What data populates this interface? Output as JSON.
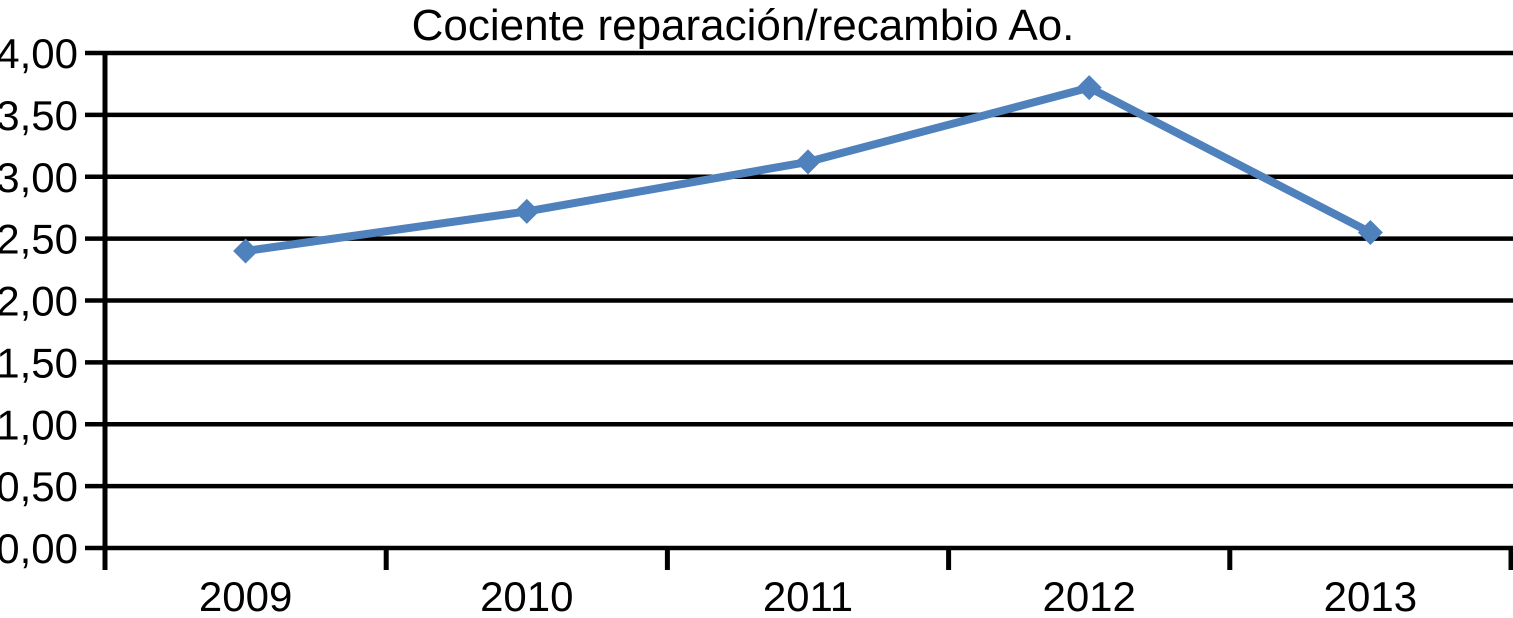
{
  "chart_data": {
    "type": "line",
    "title": "Cociente reparación/recambio Ao.",
    "categories": [
      "2009",
      "2010",
      "2011",
      "2012",
      "2013"
    ],
    "values": [
      2.4,
      2.72,
      3.12,
      3.72,
      2.55
    ],
    "ylim": [
      0,
      4
    ],
    "yticks": [
      0,
      0.5,
      1,
      1.5,
      2,
      2.5,
      3,
      3.5,
      4
    ],
    "ytick_labels": [
      "0,00",
      "0,50",
      "1,00",
      "1,50",
      "2,00",
      "2,50",
      "3,00",
      "3,50",
      "4,00"
    ],
    "xlabel": "",
    "ylabel": "",
    "grid": "horizontal",
    "legend": "none",
    "marker": "diamond",
    "line_color": "#4F81BD",
    "axis_color": "#000000",
    "background_color": "#FFFFFF"
  }
}
